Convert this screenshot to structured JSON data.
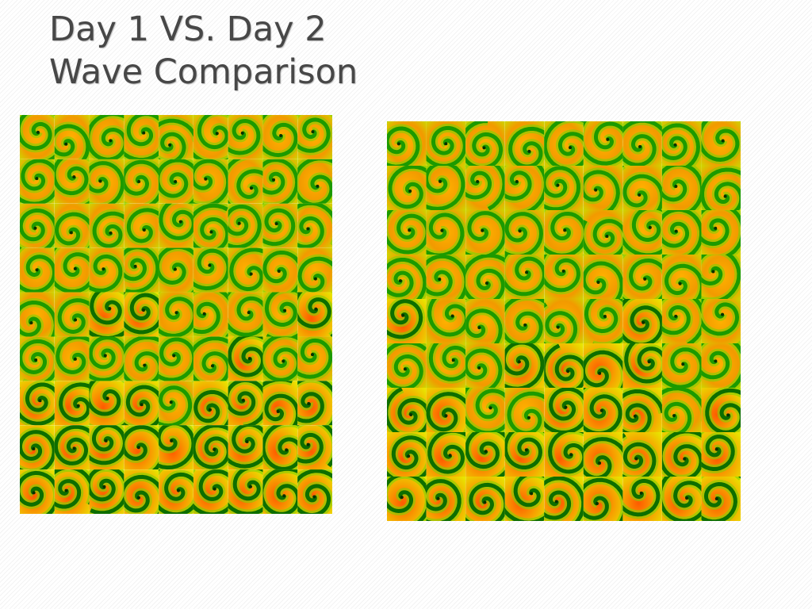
{
  "title": {
    "lines": [
      "Day 1 VS. Day 2",
      "Wave Comparison"
    ]
  }
}
